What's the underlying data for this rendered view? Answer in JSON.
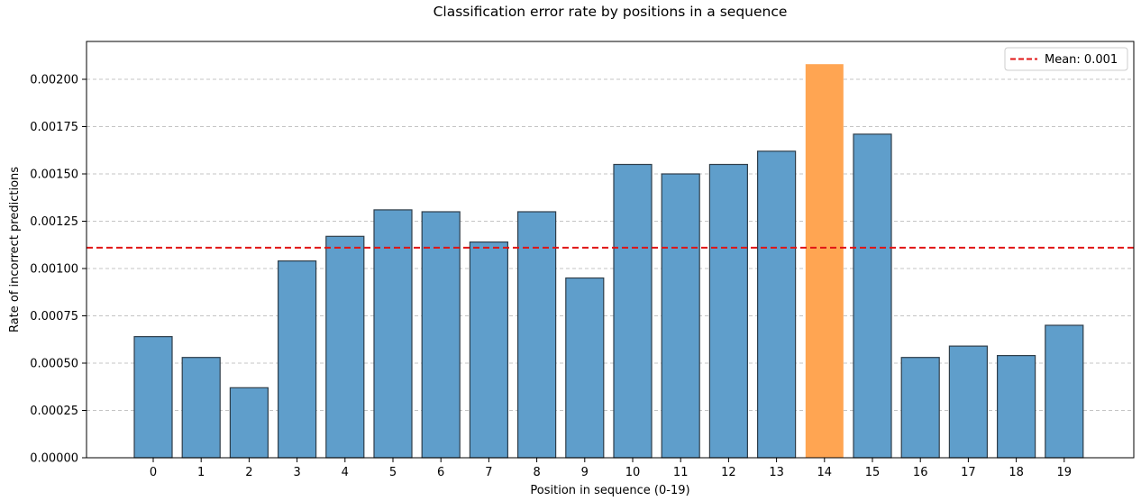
{
  "chart_data": {
    "type": "bar",
    "title": "Classification error rate by positions in a sequence",
    "xlabel": "Position in sequence (0-19)",
    "ylabel": "Rate of incorrect predictions",
    "categories": [
      "0",
      "1",
      "2",
      "3",
      "4",
      "5",
      "6",
      "7",
      "8",
      "9",
      "10",
      "11",
      "12",
      "13",
      "14",
      "15",
      "16",
      "17",
      "18",
      "19"
    ],
    "values": [
      0.00064,
      0.00053,
      0.00037,
      0.00104,
      0.00117,
      0.00131,
      0.0013,
      0.00114,
      0.0013,
      0.00095,
      0.00155,
      0.0015,
      0.00155,
      0.00162,
      0.00208,
      0.00171,
      0.00053,
      0.00059,
      0.00054,
      0.0007
    ],
    "highlight_index": 14,
    "ylim": [
      0,
      0.0022
    ],
    "yticks": [
      0,
      0.00025,
      0.0005,
      0.00075,
      0.001,
      0.00125,
      0.0015,
      0.00175,
      0.002
    ],
    "ytick_labels": [
      "0.00000",
      "0.00025",
      "0.00050",
      "0.00075",
      "0.00100",
      "0.00125",
      "0.00150",
      "0.00175",
      "0.00200"
    ],
    "mean_value": 0.00111,
    "legend": {
      "entries": [
        "Mean: 0.001"
      ],
      "placement": "top-right"
    },
    "grid": {
      "y": true,
      "x": false,
      "style": "dashed"
    },
    "colors": {
      "bar": "#5f9ecb",
      "highlight": "#ffa552",
      "bar_edge": "#2f3e4a",
      "mean_line": "#e01414",
      "grid": "#c4c4c4"
    }
  }
}
